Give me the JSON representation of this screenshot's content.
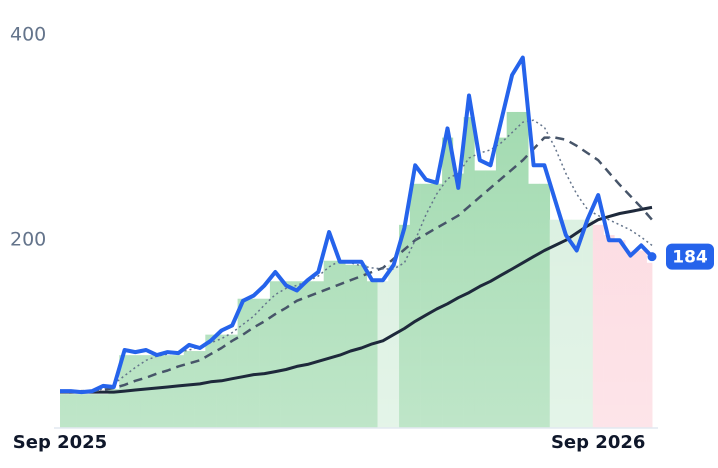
{
  "chart_data": {
    "type": "line",
    "categories": [
      "Sep 2025",
      null,
      null,
      null,
      null,
      null,
      null,
      null,
      null,
      null,
      null,
      null,
      null,
      null,
      null,
      null,
      null,
      null,
      null,
      null,
      null,
      null,
      null,
      null,
      null,
      null,
      null,
      null,
      null,
      null,
      null,
      null,
      null,
      null,
      null,
      null,
      null,
      null,
      null,
      null,
      null,
      null,
      null,
      null,
      null,
      null,
      null,
      null,
      null,
      null,
      "Sep 2026",
      null,
      null,
      null,
      null,
      null
    ],
    "ylim": [
      17,
      400
    ],
    "yticks": [
      200,
      400
    ],
    "bars": {
      "values": [
        50,
        50,
        50,
        50,
        50,
        55,
        88,
        88,
        88,
        88,
        88,
        88,
        92,
        92,
        108,
        108,
        108,
        143,
        143,
        143,
        160,
        160,
        160,
        160,
        160,
        180,
        180,
        176,
        176,
        160,
        160,
        176,
        215,
        255,
        255,
        255,
        300,
        265,
        320,
        268,
        268,
        300,
        325,
        325,
        255,
        255,
        220,
        220,
        220,
        220,
        215,
        205,
        200,
        190,
        190,
        178
      ],
      "colors": [
        "#9cd8ab",
        "#9cd8ab",
        "#9cd8ab",
        "#9cd8ab",
        "#9cd8ab",
        "#9cd8ab",
        "#9cd8ab",
        "#9cd8ab",
        "#9cd8ab",
        "#9cd8ab",
        "#9cd8ab",
        "#9cd8ab",
        "#9cd8ab",
        "#9cd8ab",
        "#9cd8ab",
        "#9cd8ab",
        "#9cd8ab",
        "#9cd8ab",
        "#9cd8ab",
        "#9cd8ab",
        "#9cd8ab",
        "#9cd8ab",
        "#9cd8ab",
        "#9cd8ab",
        "#9cd8ab",
        "#9cd8ab",
        "#9cd8ab",
        "#9cd8ab",
        "#9cd8ab",
        "#9cd8ab",
        "#d5eedc",
        "#d5eedc",
        "#9cd8ab",
        "#9cd8ab",
        "#9cd8ab",
        "#9cd8ab",
        "#9cd8ab",
        "#9cd8ab",
        "#9cd8ab",
        "#9cd8ab",
        "#9cd8ab",
        "#9cd8ab",
        "#9cd8ab",
        "#9cd8ab",
        "#9cd8ab",
        "#9cd8ab",
        "#d5eedc",
        "#d5eedc",
        "#d5eedc",
        "#d5eedc",
        "#fcd6dd",
        "#fcd6dd",
        "#fcd6dd",
        "#fcd6dd",
        "#fcd6dd",
        "#fcd6dd"
      ]
    },
    "series": [
      {
        "color": "#1e293b",
        "dash": "solid",
        "values": [
          52,
          52,
          52,
          52,
          52,
          52,
          53,
          54,
          55,
          56,
          57,
          58,
          59,
          60,
          62,
          63,
          65,
          67,
          69,
          70,
          72,
          74,
          77,
          79,
          82,
          85,
          88,
          92,
          95,
          99,
          102,
          108,
          114,
          121,
          127,
          133,
          138,
          144,
          149,
          155,
          160,
          166,
          172,
          178,
          184,
          190,
          195,
          200,
          207,
          214,
          220,
          223,
          226,
          228,
          230,
          232
        ]
      },
      {
        "color": "#475569",
        "dash": "dashed",
        "values": [
          52,
          52,
          53,
          53,
          54,
          56,
          59,
          63,
          66,
          70,
          73,
          77,
          80,
          83,
          89,
          95,
          102,
          108,
          115,
          121,
          128,
          134,
          141,
          145,
          149,
          153,
          157,
          161,
          165,
          169,
          173,
          182,
          191,
          200,
          206,
          212,
          218,
          224,
          233,
          242,
          251,
          260,
          269,
          278,
          289,
          300,
          300,
          298,
          292,
          285,
          278,
          266,
          254,
          243,
          232,
          220
        ]
      },
      {
        "color": "#64748b",
        "dash": "dotted",
        "values": [
          52,
          52,
          52,
          53,
          55,
          60,
          68,
          76,
          83,
          87,
          89,
          91,
          93,
          96,
          100,
          104,
          110,
          118,
          126,
          137,
          147,
          153,
          156,
          160,
          165,
          174,
          180,
          178,
          175,
          173,
          172,
          172,
          178,
          200,
          225,
          245,
          260,
          265,
          280,
          285,
          288,
          295,
          305,
          315,
          317,
          310,
          290,
          265,
          245,
          230,
          224,
          220,
          215,
          210,
          203,
          195
        ]
      },
      {
        "color": "#2563eb",
        "dash": "solid",
        "values": [
          53,
          53,
          52,
          53,
          58,
          57,
          93,
          91,
          93,
          88,
          91,
          90,
          98,
          95,
          102,
          112,
          117,
          141,
          146,
          156,
          169,
          156,
          151,
          161,
          169,
          208,
          179,
          179,
          179,
          161,
          161,
          176,
          212,
          273,
          259,
          256,
          309,
          251,
          341,
          278,
          273,
          317,
          361,
          378,
          273,
          273,
          239,
          205,
          190,
          220,
          244,
          200,
          200,
          185,
          195,
          184
        ]
      }
    ]
  }
}
